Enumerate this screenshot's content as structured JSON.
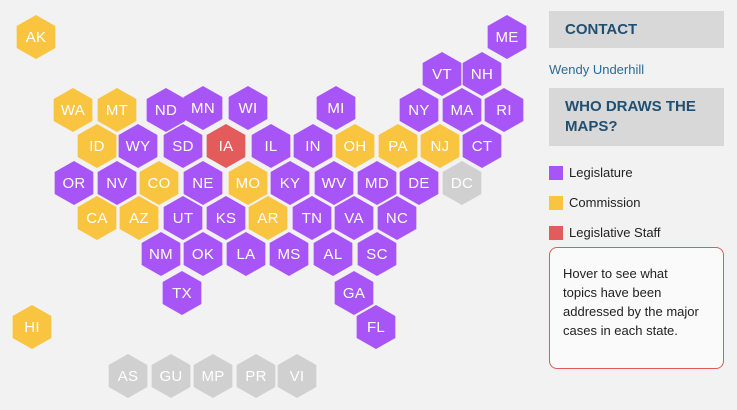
{
  "colors": {
    "legislature": "#a855f7",
    "commission": "#f9c440",
    "legislative_staff": "#e35b5b",
    "other": "#d0d0d0"
  },
  "states": [
    {
      "abbr": "AK",
      "cat": "commission"
    },
    {
      "abbr": "ME",
      "cat": "legislature"
    },
    {
      "abbr": "VT",
      "cat": "legislature"
    },
    {
      "abbr": "NH",
      "cat": "legislature"
    },
    {
      "abbr": "WA",
      "cat": "commission"
    },
    {
      "abbr": "MT",
      "cat": "commission"
    },
    {
      "abbr": "ND",
      "cat": "legislature"
    },
    {
      "abbr": "MN",
      "cat": "legislature"
    },
    {
      "abbr": "WI",
      "cat": "legislature"
    },
    {
      "abbr": "MI",
      "cat": "legislature"
    },
    {
      "abbr": "NY",
      "cat": "legislature"
    },
    {
      "abbr": "MA",
      "cat": "legislature"
    },
    {
      "abbr": "RI",
      "cat": "legislature"
    },
    {
      "abbr": "ID",
      "cat": "commission"
    },
    {
      "abbr": "WY",
      "cat": "legislature"
    },
    {
      "abbr": "SD",
      "cat": "legislature"
    },
    {
      "abbr": "IA",
      "cat": "legislative_staff"
    },
    {
      "abbr": "IL",
      "cat": "legislature"
    },
    {
      "abbr": "IN",
      "cat": "legislature"
    },
    {
      "abbr": "OH",
      "cat": "commission"
    },
    {
      "abbr": "PA",
      "cat": "commission"
    },
    {
      "abbr": "NJ",
      "cat": "commission"
    },
    {
      "abbr": "CT",
      "cat": "legislature"
    },
    {
      "abbr": "OR",
      "cat": "legislature"
    },
    {
      "abbr": "NV",
      "cat": "legislature"
    },
    {
      "abbr": "CO",
      "cat": "commission"
    },
    {
      "abbr": "NE",
      "cat": "legislature"
    },
    {
      "abbr": "MO",
      "cat": "commission"
    },
    {
      "abbr": "KY",
      "cat": "legislature"
    },
    {
      "abbr": "WV",
      "cat": "legislature"
    },
    {
      "abbr": "MD",
      "cat": "legislature"
    },
    {
      "abbr": "DE",
      "cat": "legislature"
    },
    {
      "abbr": "DC",
      "cat": "other"
    },
    {
      "abbr": "CA",
      "cat": "commission"
    },
    {
      "abbr": "AZ",
      "cat": "commission"
    },
    {
      "abbr": "UT",
      "cat": "legislature"
    },
    {
      "abbr": "KS",
      "cat": "legislature"
    },
    {
      "abbr": "AR",
      "cat": "commission"
    },
    {
      "abbr": "TN",
      "cat": "legislature"
    },
    {
      "abbr": "VA",
      "cat": "legislature"
    },
    {
      "abbr": "NC",
      "cat": "legislature"
    },
    {
      "abbr": "NM",
      "cat": "legislature"
    },
    {
      "abbr": "OK",
      "cat": "legislature"
    },
    {
      "abbr": "LA",
      "cat": "legislature"
    },
    {
      "abbr": "MS",
      "cat": "legislature"
    },
    {
      "abbr": "AL",
      "cat": "legislature"
    },
    {
      "abbr": "SC",
      "cat": "legislature"
    },
    {
      "abbr": "TX",
      "cat": "legislature"
    },
    {
      "abbr": "GA",
      "cat": "legislature"
    },
    {
      "abbr": "HI",
      "cat": "commission"
    },
    {
      "abbr": "FL",
      "cat": "legislature"
    },
    {
      "abbr": "AS",
      "cat": "other"
    },
    {
      "abbr": "GU",
      "cat": "other"
    },
    {
      "abbr": "MP",
      "cat": "other"
    },
    {
      "abbr": "PR",
      "cat": "other"
    },
    {
      "abbr": "VI",
      "cat": "other"
    }
  ],
  "sidebar": {
    "contact_title": "CONTACT",
    "contact_name": "Wendy Underhill",
    "who_title": "WHO DRAWS THE MAPS?",
    "legend": [
      {
        "label": "Legislature",
        "cat": "legislature"
      },
      {
        "label": "Commission",
        "cat": "commission"
      },
      {
        "label": "Legislative Staff",
        "cat": "legislative_staff"
      }
    ],
    "note": "Hover to see what topics have been addressed by the major cases in each state."
  }
}
